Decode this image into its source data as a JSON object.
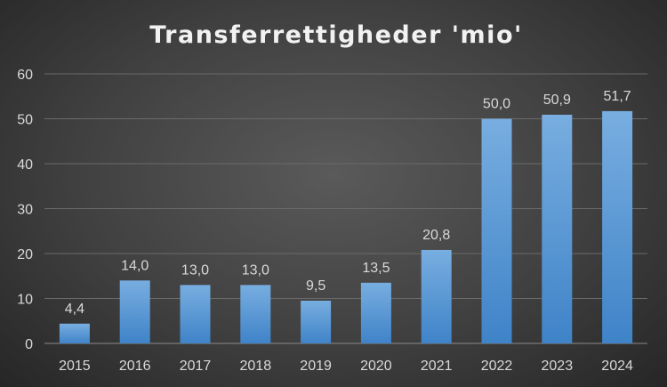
{
  "chart_data": {
    "type": "bar",
    "title": "Transferrettigheder 'mio'",
    "categories": [
      "2015",
      "2016",
      "2017",
      "2018",
      "2019",
      "2020",
      "2021",
      "2022",
      "2023",
      "2024"
    ],
    "values": [
      4.4,
      14.0,
      13.0,
      13.0,
      9.5,
      13.5,
      20.8,
      50.0,
      50.9,
      51.7
    ],
    "data_labels": [
      "4,4",
      "14,0",
      "13,0",
      "13,0",
      "9,5",
      "13,5",
      "20,8",
      "50,0",
      "50,9",
      "51,7"
    ],
    "xlabel": "",
    "ylabel": "",
    "ylim": [
      0,
      60
    ],
    "yticks": [
      0,
      10,
      20,
      30,
      40,
      50,
      60
    ],
    "grid": true,
    "legend": "none",
    "colors": {
      "bar_top": "#78aee0",
      "bar_bottom": "#3f83c8",
      "grid": "#6a6a6a"
    }
  }
}
